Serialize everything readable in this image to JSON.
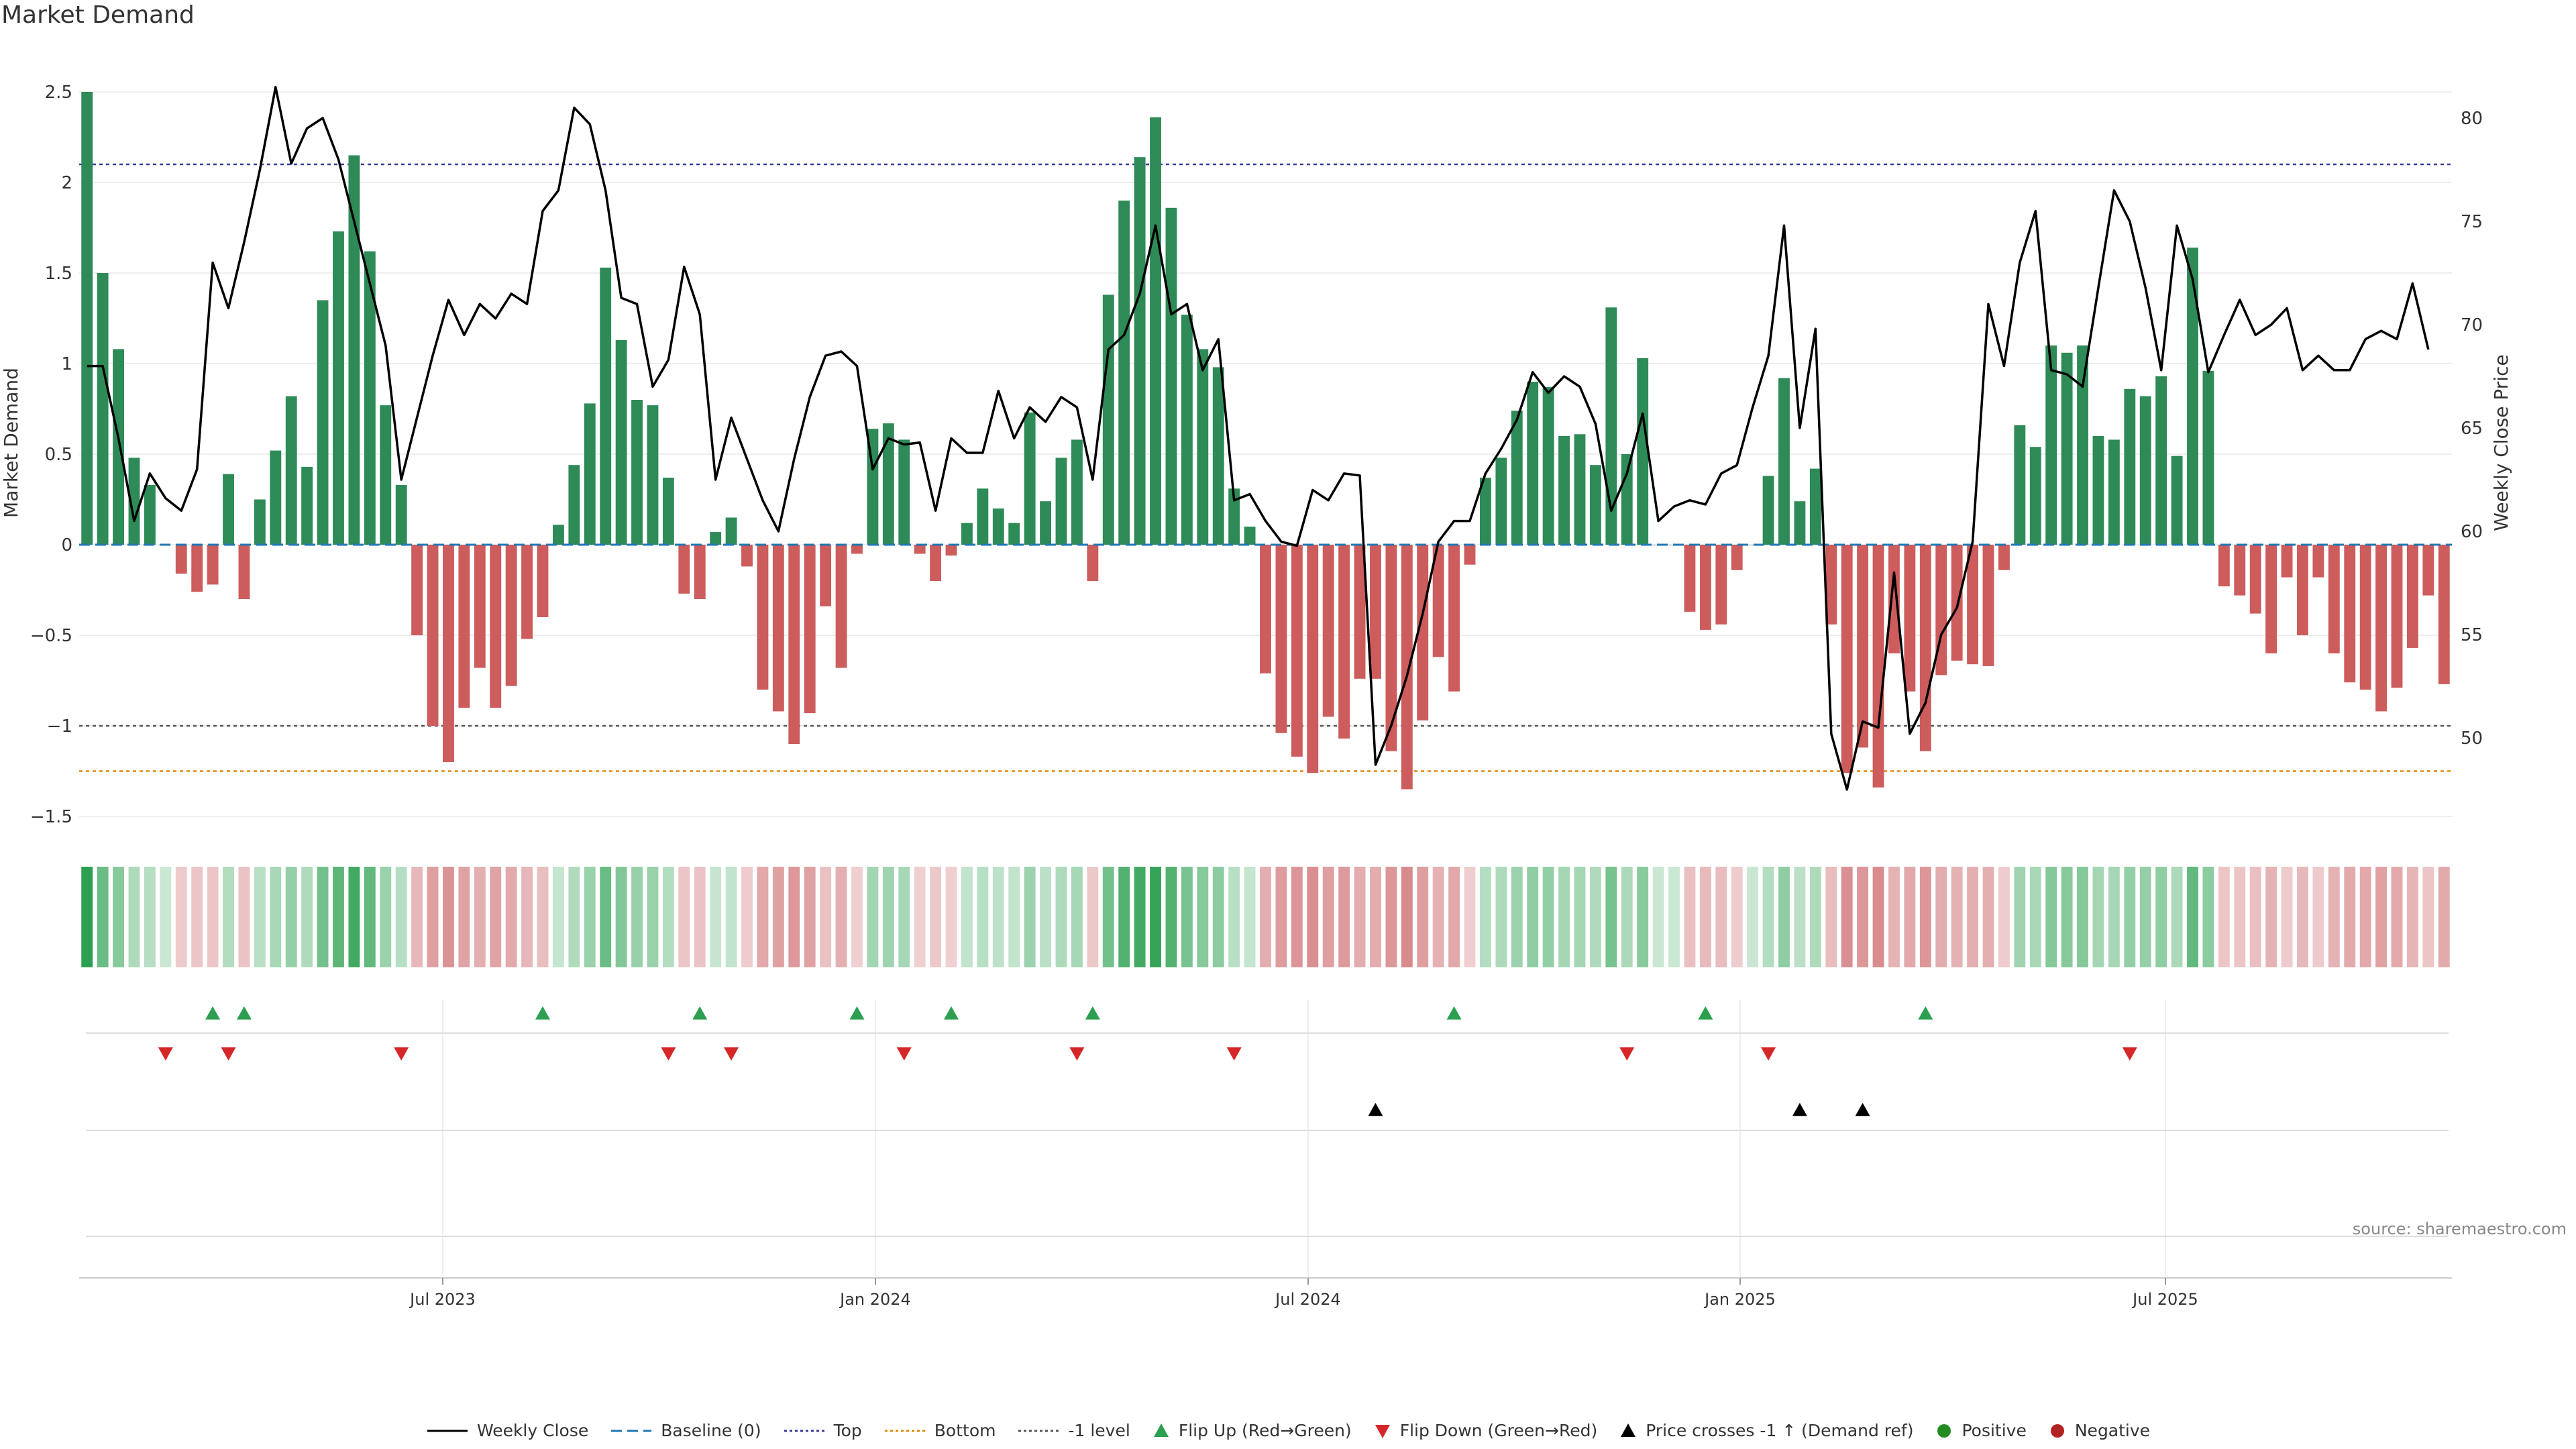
{
  "chart_data": {
    "type": "bar",
    "title": "Market Demand",
    "ylabel": "Market Demand",
    "y2label": "Weekly Close Price",
    "ylim": [
      -1.6,
      2.52
    ],
    "y2lim": [
      46.9,
      81.5
    ],
    "yticks": [
      "2.5",
      "2",
      "1.5",
      "1",
      "0.5",
      "0",
      "−0.5",
      "−1",
      "−1.5"
    ],
    "y2ticks": [
      "80",
      "75",
      "70",
      "65",
      "60",
      "55",
      "50"
    ],
    "xticks": [
      "Jul 2023",
      "Jan 2024",
      "Jul 2024",
      "Jan 2025",
      "Jul 2025"
    ],
    "levels": {
      "top": 2.1,
      "minus_one": -1.0,
      "bottom": -1.25
    },
    "demand": [
      2.5,
      1.5,
      1.08,
      0.48,
      0.33,
      0,
      -0.16,
      -0.26,
      -0.22,
      0.39,
      -0.3,
      0.25,
      0.52,
      0.82,
      0.43,
      1.35,
      1.73,
      2.15,
      1.62,
      0.77,
      0.33,
      -0.5,
      -1.0,
      -1.2,
      -0.9,
      -0.68,
      -0.9,
      -0.78,
      -0.52,
      -0.4,
      0.11,
      0.44,
      0.78,
      1.53,
      1.13,
      0.8,
      0.77,
      0.37,
      -0.27,
      -0.3,
      0.07,
      0.15,
      -0.12,
      -0.8,
      -0.92,
      -1.1,
      -0.93,
      -0.34,
      -0.68,
      -0.05,
      0.64,
      0.67,
      0.58,
      -0.05,
      -0.2,
      -0.06,
      0.12,
      0.31,
      0.2,
      0.12,
      0.73,
      0.24,
      0.48,
      0.58,
      -0.2,
      1.38,
      1.9,
      2.14,
      2.36,
      1.86,
      1.27,
      1.08,
      0.98,
      0.31,
      0.1,
      -0.71,
      -1.04,
      -1.17,
      -1.26,
      -0.95,
      -1.07,
      -0.74,
      -0.74,
      -1.14,
      -1.35,
      -0.97,
      -0.62,
      -0.81,
      -0.11,
      0.37,
      0.48,
      0.74,
      0.9,
      0.87,
      0.6,
      0.61,
      0.44,
      1.31,
      0.5,
      1.03,
      0,
      0,
      -0.37,
      -0.47,
      -0.44,
      -0.14,
      0,
      0.38,
      0.92,
      0.24,
      0.42,
      -0.44,
      -1.26,
      -1.12,
      -1.34,
      -0.6,
      -0.81,
      -1.14,
      -0.72,
      -0.64,
      -0.66,
      -0.67,
      -0.14,
      0.66,
      0.54,
      1.1,
      1.06,
      1.1,
      0.6,
      0.58,
      0.86,
      0.82,
      0.93,
      0.49,
      1.64,
      0.96,
      -0.23,
      -0.28,
      -0.38,
      -0.6,
      -0.18,
      -0.5,
      -0.18,
      -0.6,
      -0.76,
      -0.8,
      -0.92,
      -0.79,
      -0.57,
      -0.28,
      -0.77
    ],
    "weekly_close": [
      68,
      68,
      64.5,
      60.5,
      62.8,
      61.6,
      61,
      63,
      73,
      70.8,
      74,
      77.5,
      81.5,
      77.8,
      79.5,
      80,
      78,
      75,
      72,
      69,
      62.5,
      65.5,
      68.5,
      71.2,
      69.5,
      71,
      70.3,
      71.5,
      71,
      75.5,
      76.5,
      80.5,
      79.7,
      76.5,
      71.3,
      71,
      67,
      68.3,
      72.8,
      70.5,
      62.5,
      65.5,
      63.5,
      61.5,
      60,
      63.5,
      66.5,
      68.5,
      68.7,
      68,
      63,
      64.5,
      64.2,
      64.3,
      61,
      64.5,
      63.8,
      63.8,
      66.8,
      64.5,
      66,
      65.3,
      66.5,
      66,
      62.5,
      68.8,
      69.5,
      71.5,
      74.8,
      70.5,
      71,
      67.8,
      69.3,
      61.5,
      61.8,
      60.5,
      59.5,
      59.3,
      62,
      61.5,
      62.8,
      62.7,
      48.7,
      50.6,
      53,
      56,
      59.5,
      60.5,
      60.5,
      62.8,
      64,
      65.4,
      67.7,
      66.7,
      67.5,
      67,
      65.2,
      61,
      62.8,
      65.7,
      60.5,
      61.2,
      61.5,
      61.3,
      62.8,
      63.2,
      66,
      68.5,
      74.8,
      65,
      69.8,
      50.2,
      47.5,
      50.8,
      50.5,
      58,
      50.2,
      51.7,
      55,
      56.3,
      59.5,
      71,
      68,
      73,
      75.5,
      67.8,
      67.6,
      67,
      71.8,
      76.5,
      75,
      71.8,
      67.8,
      74.8,
      72.2,
      67.7,
      69.5,
      71.2,
      69.5,
      70,
      70.8,
      67.8,
      68.5,
      67.8,
      67.8,
      69.3,
      69.7,
      69.3,
      72,
      68.8
    ],
    "flip_up_weeks": [
      8,
      10,
      29,
      39,
      49,
      55,
      64,
      87,
      103,
      117
    ],
    "flip_down_weeks": [
      5,
      9,
      20,
      37,
      41,
      52,
      63,
      73,
      98,
      107,
      130
    ],
    "price_cross_weeks": [
      82,
      109,
      113
    ],
    "watermark": "source: sharemaestro.com",
    "legend": [
      {
        "label": "Weekly Close",
        "kind": "line",
        "color": "#000000"
      },
      {
        "label": "Baseline (0)",
        "kind": "dash",
        "color": "#1f77b4"
      },
      {
        "label": "Top",
        "kind": "dot",
        "color": "#3b3b9a"
      },
      {
        "label": "Bottom",
        "kind": "dot",
        "color": "#e08a0a"
      },
      {
        "label": "-1 level",
        "kind": "dot",
        "color": "#555555"
      },
      {
        "label": "Flip Up (Red→Green)",
        "kind": "up",
        "color": "#2ca050"
      },
      {
        "label": "Flip Down (Green→Red)",
        "kind": "down",
        "color": "#d62728"
      },
      {
        "label": "Price crosses -1 ↑ (Demand ref)",
        "kind": "up",
        "color": "#000000"
      },
      {
        "label": "Positive",
        "kind": "circle",
        "color": "#228b22"
      },
      {
        "label": "Negative",
        "kind": "circle",
        "color": "#b22222"
      }
    ],
    "colors": {
      "positive": "#2e8b57",
      "negative": "#cd5c5c",
      "line": "#000000",
      "strip_pos": "#2ca050",
      "strip_neg": "#c44e52"
    }
  }
}
